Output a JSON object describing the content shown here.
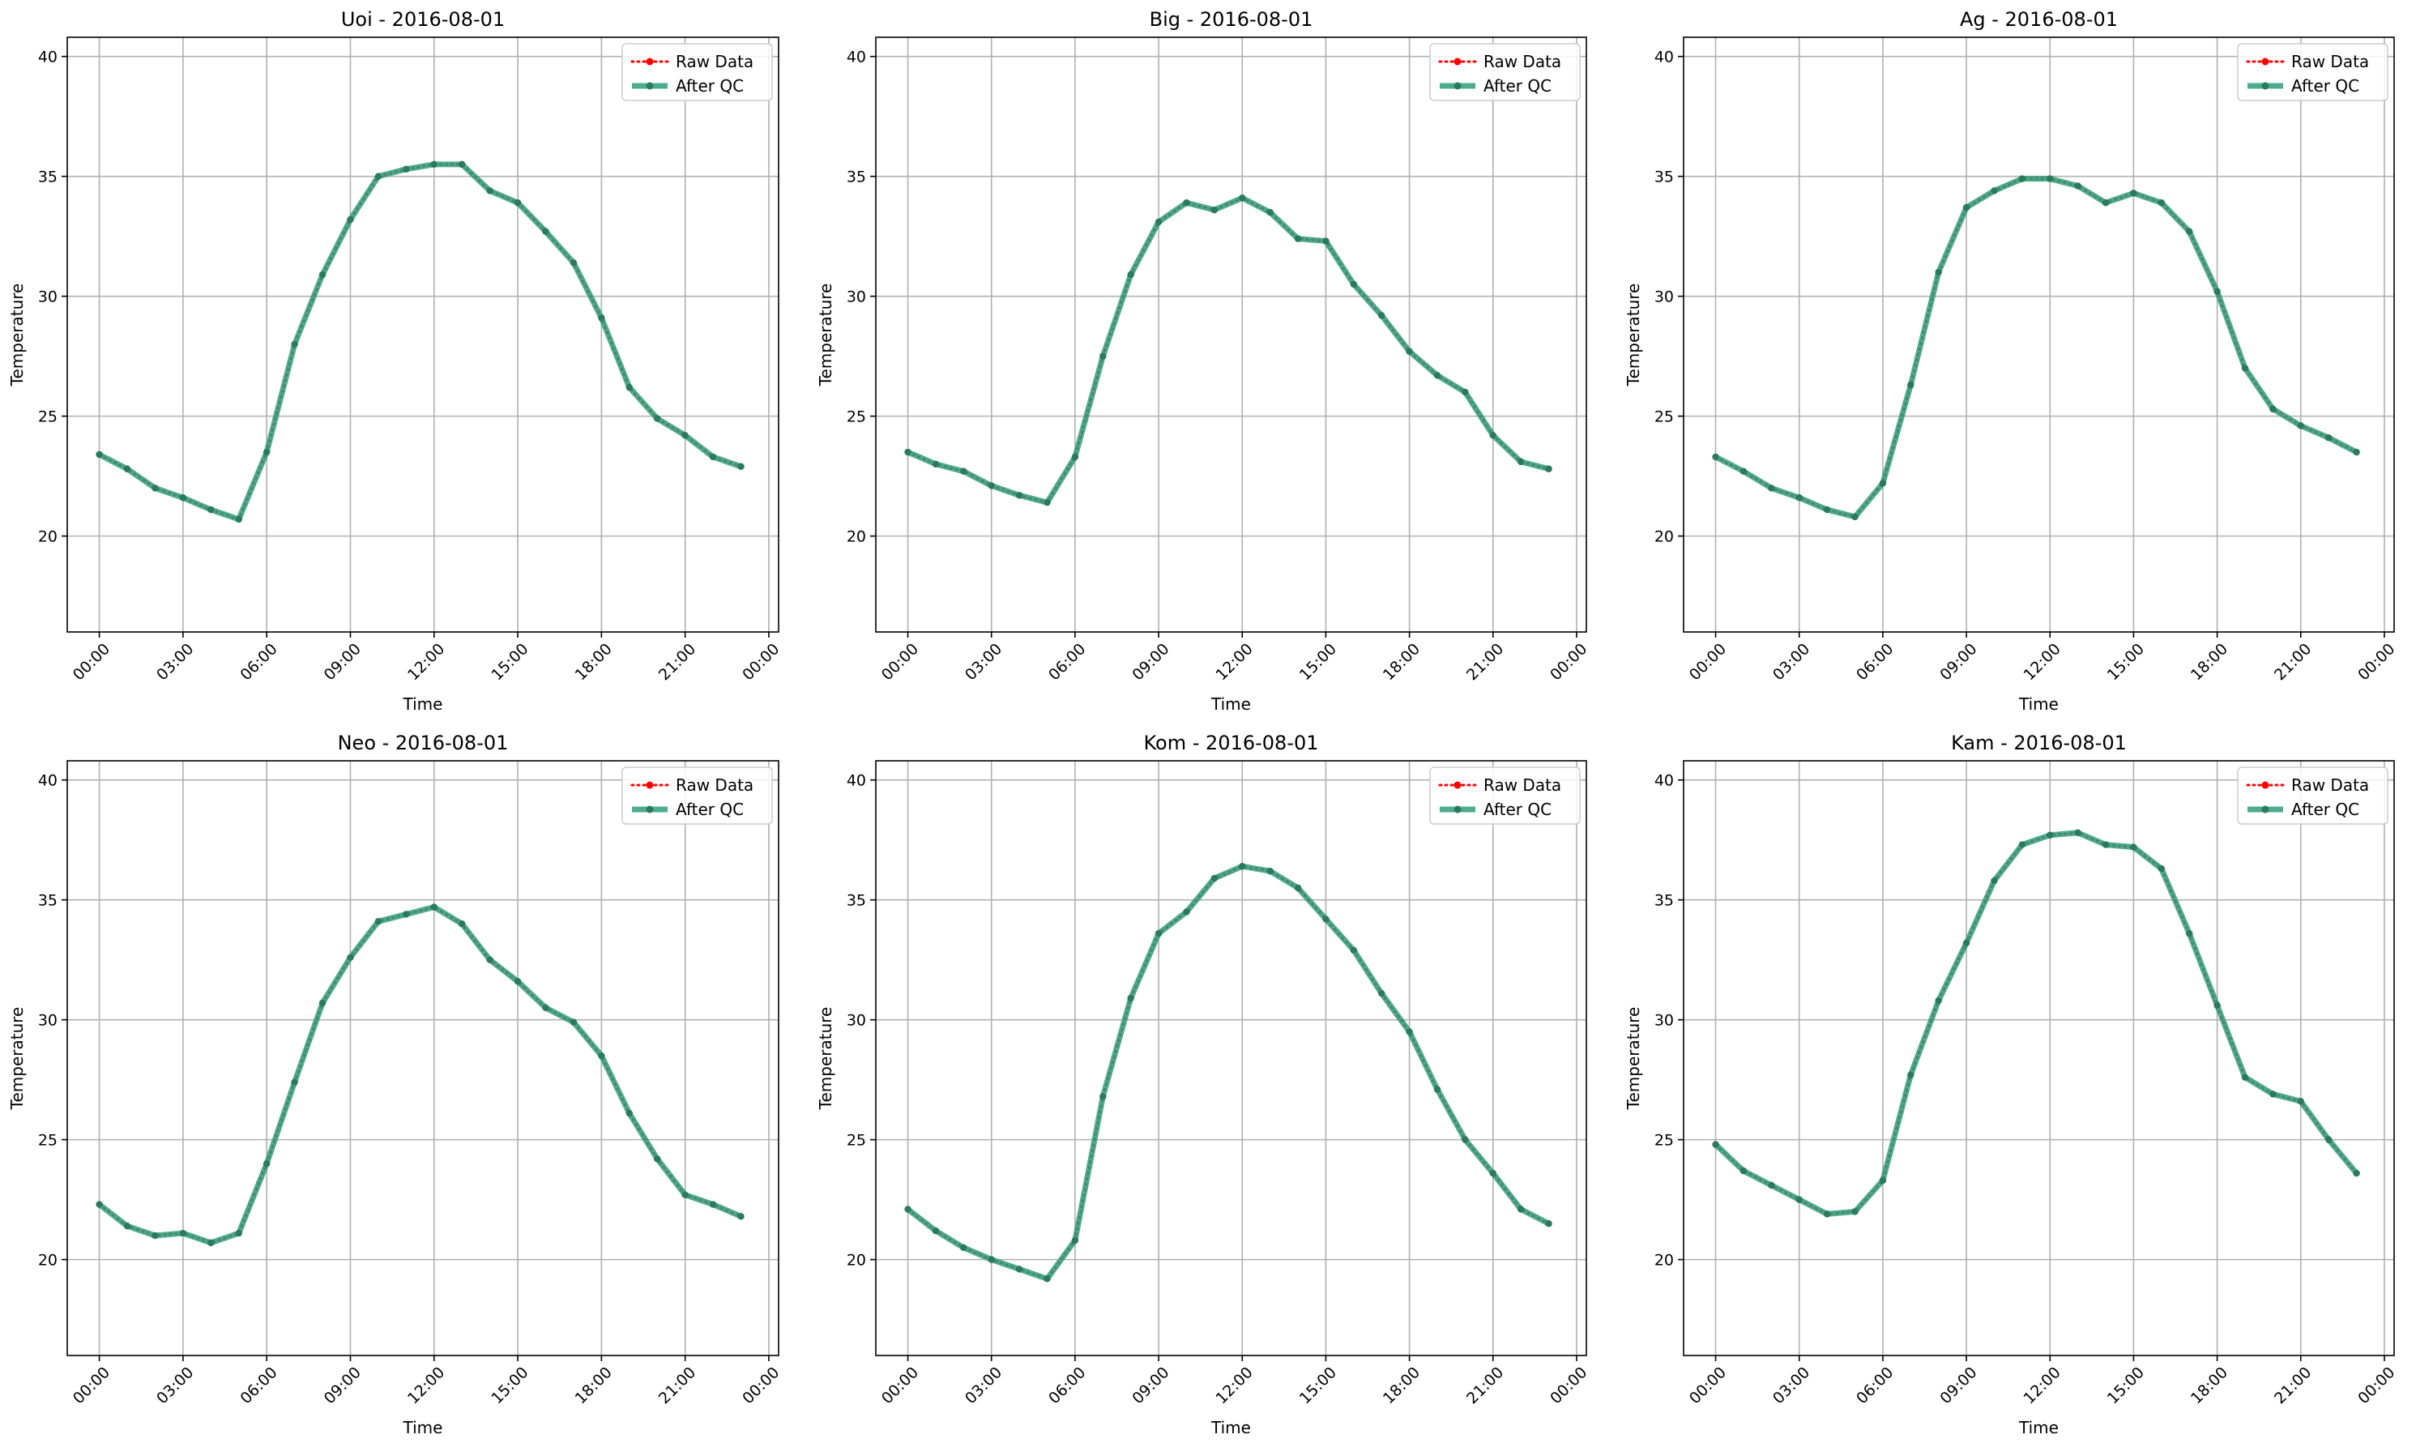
{
  "figure": {
    "ylabel": "Temperature",
    "xlabel": "Time",
    "legend_labels": [
      "Raw Data",
      "After QC"
    ],
    "colors": {
      "raw": "#ff0000",
      "qc": "#2e9d7a",
      "qc_marker": "#2a7a5e",
      "grid": "#b0b0b0"
    }
  },
  "chart_data": [
    {
      "type": "line",
      "title": "Uoi - 2016-08-01",
      "xlabel": "Time",
      "ylabel": "Temperature",
      "ylim": [
        16,
        40.8
      ],
      "yticks": [
        20,
        25,
        30,
        35,
        40
      ],
      "xticks": [
        "00:00",
        "03:00",
        "06:00",
        "09:00",
        "12:00",
        "15:00",
        "18:00",
        "21:00",
        "00:00"
      ],
      "grid": true,
      "legend": "top-right",
      "series": [
        {
          "name": "Raw Data",
          "x": [
            "00:00",
            "01:00",
            "02:00",
            "03:00",
            "04:00",
            "05:00",
            "06:00",
            "07:00",
            "08:00",
            "09:00",
            "10:00",
            "11:00",
            "12:00",
            "13:00",
            "14:00",
            "15:00",
            "16:00",
            "17:00",
            "18:00",
            "19:00",
            "20:00",
            "21:00",
            "22:00",
            "23:00"
          ],
          "values": [
            23.4,
            22.8,
            22.0,
            21.6,
            21.1,
            20.7,
            23.5,
            28.0,
            30.9,
            33.2,
            35.0,
            35.3,
            35.5,
            35.5,
            34.4,
            33.9,
            32.7,
            31.4,
            29.1,
            26.2,
            24.9,
            24.2,
            23.3,
            22.9
          ]
        },
        {
          "name": "After QC",
          "x": [
            "00:00",
            "01:00",
            "02:00",
            "03:00",
            "04:00",
            "05:00",
            "06:00",
            "07:00",
            "08:00",
            "09:00",
            "10:00",
            "11:00",
            "12:00",
            "13:00",
            "14:00",
            "15:00",
            "16:00",
            "17:00",
            "18:00",
            "19:00",
            "20:00",
            "21:00",
            "22:00",
            "23:00"
          ],
          "values": [
            23.4,
            22.8,
            22.0,
            21.6,
            21.1,
            20.7,
            23.5,
            28.0,
            30.9,
            33.2,
            35.0,
            35.3,
            35.5,
            35.5,
            34.4,
            33.9,
            32.7,
            31.4,
            29.1,
            26.2,
            24.9,
            24.2,
            23.3,
            22.9
          ]
        }
      ]
    },
    {
      "type": "line",
      "title": "Big - 2016-08-01",
      "xlabel": "Time",
      "ylabel": "Temperature",
      "ylim": [
        16,
        40.8
      ],
      "yticks": [
        20,
        25,
        30,
        35,
        40
      ],
      "xticks": [
        "00:00",
        "03:00",
        "06:00",
        "09:00",
        "12:00",
        "15:00",
        "18:00",
        "21:00",
        "00:00"
      ],
      "grid": true,
      "legend": "top-right",
      "series": [
        {
          "name": "Raw Data",
          "x": [
            "00:00",
            "01:00",
            "02:00",
            "03:00",
            "04:00",
            "05:00",
            "06:00",
            "07:00",
            "08:00",
            "09:00",
            "10:00",
            "11:00",
            "12:00",
            "13:00",
            "14:00",
            "15:00",
            "16:00",
            "17:00",
            "18:00",
            "19:00",
            "20:00",
            "21:00",
            "22:00",
            "23:00"
          ],
          "values": [
            23.5,
            23.0,
            22.7,
            22.1,
            21.7,
            21.4,
            23.3,
            27.5,
            30.9,
            33.1,
            33.9,
            33.6,
            34.1,
            33.5,
            32.4,
            32.3,
            30.5,
            29.2,
            27.7,
            26.7,
            26.0,
            24.2,
            23.1,
            22.8
          ]
        },
        {
          "name": "After QC",
          "x": [
            "00:00",
            "01:00",
            "02:00",
            "03:00",
            "04:00",
            "05:00",
            "06:00",
            "07:00",
            "08:00",
            "09:00",
            "10:00",
            "11:00",
            "12:00",
            "13:00",
            "14:00",
            "15:00",
            "16:00",
            "17:00",
            "18:00",
            "19:00",
            "20:00",
            "21:00",
            "22:00",
            "23:00"
          ],
          "values": [
            23.5,
            23.0,
            22.7,
            22.1,
            21.7,
            21.4,
            23.3,
            27.5,
            30.9,
            33.1,
            33.9,
            33.6,
            34.1,
            33.5,
            32.4,
            32.3,
            30.5,
            29.2,
            27.7,
            26.7,
            26.0,
            24.2,
            23.1,
            22.8
          ]
        }
      ]
    },
    {
      "type": "line",
      "title": "Ag - 2016-08-01",
      "xlabel": "Time",
      "ylabel": "Temperature",
      "ylim": [
        16,
        40.8
      ],
      "yticks": [
        20,
        25,
        30,
        35,
        40
      ],
      "xticks": [
        "00:00",
        "03:00",
        "06:00",
        "09:00",
        "12:00",
        "15:00",
        "18:00",
        "21:00",
        "00:00"
      ],
      "grid": true,
      "legend": "top-right",
      "series": [
        {
          "name": "Raw Data",
          "x": [
            "00:00",
            "01:00",
            "02:00",
            "03:00",
            "04:00",
            "05:00",
            "06:00",
            "07:00",
            "08:00",
            "09:00",
            "10:00",
            "11:00",
            "12:00",
            "13:00",
            "14:00",
            "15:00",
            "16:00",
            "17:00",
            "18:00",
            "19:00",
            "20:00",
            "21:00",
            "22:00",
            "23:00"
          ],
          "values": [
            23.3,
            22.7,
            22.0,
            21.6,
            21.1,
            20.8,
            22.2,
            26.3,
            31.0,
            33.7,
            34.4,
            34.9,
            34.9,
            34.6,
            33.9,
            34.3,
            33.9,
            32.7,
            30.2,
            27.0,
            25.3,
            24.6,
            24.1,
            23.5
          ]
        },
        {
          "name": "After QC",
          "x": [
            "00:00",
            "01:00",
            "02:00",
            "03:00",
            "04:00",
            "05:00",
            "06:00",
            "07:00",
            "08:00",
            "09:00",
            "10:00",
            "11:00",
            "12:00",
            "13:00",
            "14:00",
            "15:00",
            "16:00",
            "17:00",
            "18:00",
            "19:00",
            "20:00",
            "21:00",
            "22:00",
            "23:00"
          ],
          "values": [
            23.3,
            22.7,
            22.0,
            21.6,
            21.1,
            20.8,
            22.2,
            26.3,
            31.0,
            33.7,
            34.4,
            34.9,
            34.9,
            34.6,
            33.9,
            34.3,
            33.9,
            32.7,
            30.2,
            27.0,
            25.3,
            24.6,
            24.1,
            23.5
          ]
        }
      ]
    },
    {
      "type": "line",
      "title": "Neo - 2016-08-01",
      "xlabel": "Time",
      "ylabel": "Temperature",
      "ylim": [
        16,
        40.8
      ],
      "yticks": [
        20,
        25,
        30,
        35,
        40
      ],
      "xticks": [
        "00:00",
        "03:00",
        "06:00",
        "09:00",
        "12:00",
        "15:00",
        "18:00",
        "21:00",
        "00:00"
      ],
      "grid": true,
      "legend": "top-right",
      "series": [
        {
          "name": "Raw Data",
          "x": [
            "00:00",
            "01:00",
            "02:00",
            "03:00",
            "04:00",
            "05:00",
            "06:00",
            "07:00",
            "08:00",
            "09:00",
            "10:00",
            "11:00",
            "12:00",
            "13:00",
            "14:00",
            "15:00",
            "16:00",
            "17:00",
            "18:00",
            "19:00",
            "20:00",
            "21:00",
            "22:00",
            "23:00"
          ],
          "values": [
            22.3,
            21.4,
            21.0,
            21.1,
            20.7,
            21.1,
            24.0,
            27.4,
            30.7,
            32.6,
            34.1,
            34.4,
            34.7,
            34.0,
            32.5,
            31.6,
            30.5,
            29.9,
            28.5,
            26.1,
            24.2,
            22.7,
            22.3,
            21.8
          ]
        },
        {
          "name": "After QC",
          "x": [
            "00:00",
            "01:00",
            "02:00",
            "03:00",
            "04:00",
            "05:00",
            "06:00",
            "07:00",
            "08:00",
            "09:00",
            "10:00",
            "11:00",
            "12:00",
            "13:00",
            "14:00",
            "15:00",
            "16:00",
            "17:00",
            "18:00",
            "19:00",
            "20:00",
            "21:00",
            "22:00",
            "23:00"
          ],
          "values": [
            22.3,
            21.4,
            21.0,
            21.1,
            20.7,
            21.1,
            24.0,
            27.4,
            30.7,
            32.6,
            34.1,
            34.4,
            34.7,
            34.0,
            32.5,
            31.6,
            30.5,
            29.9,
            28.5,
            26.1,
            24.2,
            22.7,
            22.3,
            21.8
          ]
        }
      ]
    },
    {
      "type": "line",
      "title": "Kom - 2016-08-01",
      "xlabel": "Time",
      "ylabel": "Temperature",
      "ylim": [
        16,
        40.8
      ],
      "yticks": [
        20,
        25,
        30,
        35,
        40
      ],
      "xticks": [
        "00:00",
        "03:00",
        "06:00",
        "09:00",
        "12:00",
        "15:00",
        "18:00",
        "21:00",
        "00:00"
      ],
      "grid": true,
      "legend": "top-right",
      "series": [
        {
          "name": "Raw Data",
          "x": [
            "00:00",
            "01:00",
            "02:00",
            "03:00",
            "04:00",
            "05:00",
            "06:00",
            "07:00",
            "08:00",
            "09:00",
            "10:00",
            "11:00",
            "12:00",
            "13:00",
            "14:00",
            "15:00",
            "16:00",
            "17:00",
            "18:00",
            "19:00",
            "20:00",
            "21:00",
            "22:00",
            "23:00"
          ],
          "values": [
            22.1,
            21.2,
            20.5,
            20.0,
            19.6,
            19.2,
            20.8,
            26.8,
            30.9,
            33.6,
            34.5,
            35.9,
            36.4,
            36.2,
            35.5,
            34.2,
            32.9,
            31.1,
            29.5,
            27.1,
            25.0,
            23.6,
            22.1,
            21.5
          ]
        },
        {
          "name": "After QC",
          "x": [
            "00:00",
            "01:00",
            "02:00",
            "03:00",
            "04:00",
            "05:00",
            "06:00",
            "07:00",
            "08:00",
            "09:00",
            "10:00",
            "11:00",
            "12:00",
            "13:00",
            "14:00",
            "15:00",
            "16:00",
            "17:00",
            "18:00",
            "19:00",
            "20:00",
            "21:00",
            "22:00",
            "23:00"
          ],
          "values": [
            22.1,
            21.2,
            20.5,
            20.0,
            19.6,
            19.2,
            20.8,
            26.8,
            30.9,
            33.6,
            34.5,
            35.9,
            36.4,
            36.2,
            35.5,
            34.2,
            32.9,
            31.1,
            29.5,
            27.1,
            25.0,
            23.6,
            22.1,
            21.5
          ]
        }
      ]
    },
    {
      "type": "line",
      "title": "Kam - 2016-08-01",
      "xlabel": "Time",
      "ylabel": "Temperature",
      "ylim": [
        16,
        40.8
      ],
      "yticks": [
        20,
        25,
        30,
        35,
        40
      ],
      "xticks": [
        "00:00",
        "03:00",
        "06:00",
        "09:00",
        "12:00",
        "15:00",
        "18:00",
        "21:00",
        "00:00"
      ],
      "grid": true,
      "legend": "top-right",
      "series": [
        {
          "name": "Raw Data",
          "x": [
            "00:00",
            "01:00",
            "02:00",
            "03:00",
            "04:00",
            "05:00",
            "06:00",
            "07:00",
            "08:00",
            "09:00",
            "10:00",
            "11:00",
            "12:00",
            "13:00",
            "14:00",
            "15:00",
            "16:00",
            "17:00",
            "18:00",
            "19:00",
            "20:00",
            "21:00",
            "22:00",
            "23:00"
          ],
          "values": [
            24.8,
            23.7,
            23.1,
            22.5,
            21.9,
            22.0,
            23.3,
            27.7,
            30.8,
            33.2,
            35.8,
            37.3,
            37.7,
            37.8,
            37.3,
            37.2,
            36.3,
            33.6,
            30.6,
            27.6,
            26.9,
            26.6,
            25.0,
            23.6
          ]
        },
        {
          "name": "After QC",
          "x": [
            "00:00",
            "01:00",
            "02:00",
            "03:00",
            "04:00",
            "05:00",
            "06:00",
            "07:00",
            "08:00",
            "09:00",
            "10:00",
            "11:00",
            "12:00",
            "13:00",
            "14:00",
            "15:00",
            "16:00",
            "17:00",
            "18:00",
            "19:00",
            "20:00",
            "21:00",
            "22:00",
            "23:00"
          ],
          "values": [
            24.8,
            23.7,
            23.1,
            22.5,
            21.9,
            22.0,
            23.3,
            27.7,
            30.8,
            33.2,
            35.8,
            37.3,
            37.7,
            37.8,
            37.3,
            37.2,
            36.3,
            33.6,
            30.6,
            27.6,
            26.9,
            26.6,
            25.0,
            23.6
          ]
        }
      ]
    }
  ]
}
